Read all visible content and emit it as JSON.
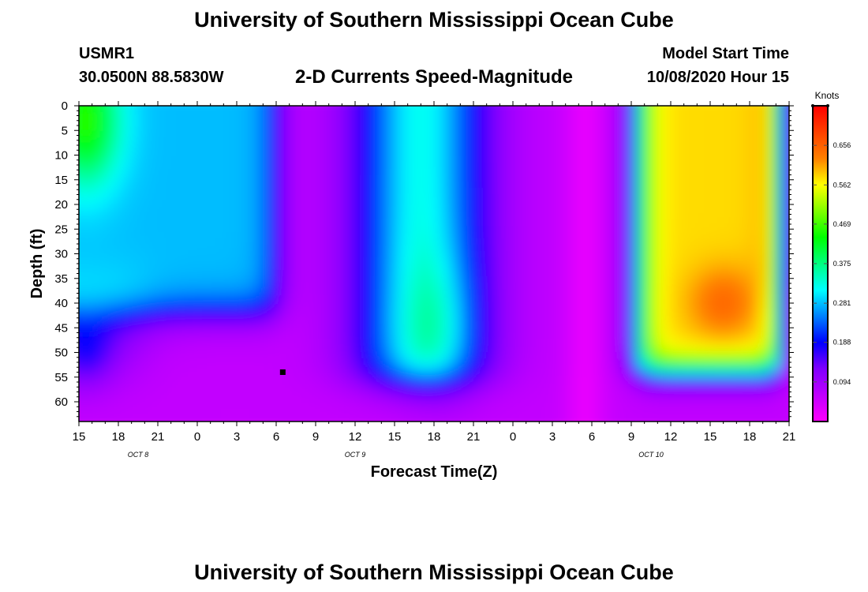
{
  "page": {
    "title_top": "University of Southern Mississippi Ocean Cube",
    "title_bottom": "University of Southern Mississippi Ocean Cube",
    "station_id": "USMR1",
    "coordinates": "30.0500N 88.5830W",
    "product": "2-D Currents Speed-Magnitude",
    "model_start_label": "Model Start Time",
    "model_start_value": "10/08/2020 Hour 15"
  },
  "chart_data": {
    "type": "heatmap",
    "title": "2-D Currents Speed-Magnitude",
    "xlabel": "Forecast Time(Z)",
    "ylabel": "Depth (ft)",
    "x_tick_labels": [
      "15",
      "18",
      "21",
      "0",
      "3",
      "6",
      "9",
      "12",
      "15",
      "18",
      "21",
      "0",
      "3",
      "6",
      "9",
      "12",
      "15",
      "18",
      "21"
    ],
    "x_range_hours": [
      0,
      54
    ],
    "date_labels": [
      {
        "text": "OCT 8",
        "hour": 4.5
      },
      {
        "text": "OCT 9",
        "hour": 21
      },
      {
        "text": "OCT 10",
        "hour": 43.5
      }
    ],
    "y_tick_labels": [
      "0",
      "5",
      "10",
      "15",
      "20",
      "25",
      "30",
      "35",
      "40",
      "45",
      "50",
      "55",
      "60"
    ],
    "ylim": [
      0,
      64
    ],
    "marker": {
      "hour": 15.5,
      "depth": 54
    },
    "colorbar": {
      "label": "Knots",
      "ticks": [
        "0.656",
        "0.562",
        "0.469",
        "0.375",
        "0.281",
        "0.188",
        "0.094"
      ],
      "tick_values": [
        0.656,
        0.562,
        0.469,
        0.375,
        0.281,
        0.188,
        0.094
      ],
      "range": [
        0.0,
        0.75
      ],
      "colors": [
        "#ff00ff",
        "#c000ff",
        "#8000ff",
        "#0000ff",
        "#0080ff",
        "#00ffff",
        "#00ff80",
        "#00ff00",
        "#80ff00",
        "#ffff00",
        "#ff8000",
        "#ff4000",
        "#ff0000"
      ]
    }
  }
}
